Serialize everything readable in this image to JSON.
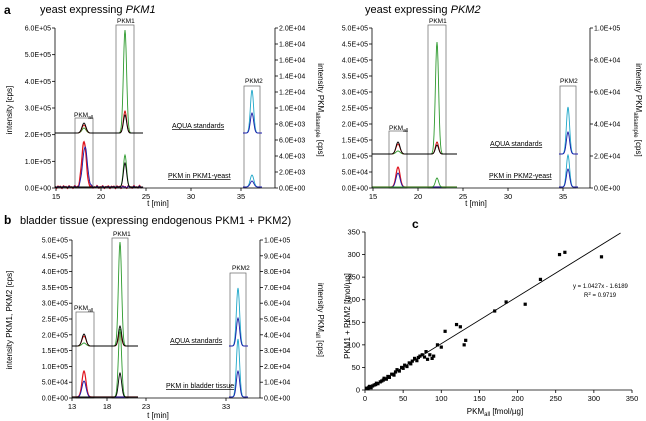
{
  "chart_data": [
    {
      "panel": "a",
      "type": "line",
      "title_prefix": "yeast expressing ",
      "title_gene": "PKM1",
      "xlabel": "t [min]",
      "xticks": [
        "15",
        "20",
        "25",
        "30",
        "35"
      ],
      "left_ylabel": "intensity [cps]",
      "left_ticks": [
        "0.0E+00",
        "1.0E+05",
        "2.0E+05",
        "3.0E+05",
        "4.0E+05",
        "5.0E+05",
        "6.0E+05"
      ],
      "right_ylabel_a": "intensity PKM",
      "right_ylabel_sub": "all",
      "right_ylabel_sub2": "sample",
      "right_ylabel_b": " [cps]",
      "right_ticks": [
        "0.0E+00",
        "2.0E+03",
        "4.0E+03",
        "6.0E+03",
        "8.0E+03",
        "1.0E+04",
        "1.2E+04",
        "1.4E+04",
        "1.6E+04",
        "1.8E+04",
        "2.0E+04"
      ],
      "box_labels": {
        "pkmall": "PKM",
        "pkmall_sub": "all",
        "pkm1": "PKM1",
        "pkm2": "PKM2"
      },
      "trace_labels": {
        "standards": "AQUA standards",
        "sample": "PKM in PKM1-yeast"
      }
    },
    {
      "panel": "a2",
      "type": "line",
      "title_prefix": "yeast expressing ",
      "title_gene": "PKM2",
      "xlabel": "t [min]",
      "xticks": [
        "15",
        "20",
        "25",
        "30",
        "35"
      ],
      "left_ticks": [
        "0.0E+00",
        "5.0E+04",
        "1.0E+05",
        "1.5E+05",
        "2.0E+05",
        "2.5E+05",
        "3.0E+05",
        "3.5E+05",
        "4.0E+05",
        "4.5E+05",
        "5.0E+05"
      ],
      "right_ticks": [
        "0.0E+00",
        "2.0E+04",
        "4.0E+04",
        "6.0E+04",
        "8.0E+04",
        "1.0E+05"
      ],
      "box_labels": {
        "pkmall": "PKM",
        "pkmall_sub": "all",
        "pkm1": "PKM1",
        "pkm2": "PKM2"
      },
      "trace_labels": {
        "standards": "AQUA standards",
        "sample": "PKM in PKM2-yeast"
      }
    },
    {
      "panel": "b",
      "type": "line",
      "title": "bladder tissue (expressing endogenous PKM1 + PKM2)",
      "xlabel": "t [min]",
      "xticks": [
        "13",
        "18",
        "23",
        "33"
      ],
      "left_ylabel": "intensity PKM1, PKM2 [cps]",
      "left_ticks": [
        "0.0E+00",
        "5.0E+04",
        "1.0E+05",
        "1.5E+05",
        "2.0E+05",
        "2.5E+05",
        "3.0E+05",
        "3.5E+05",
        "4.0E+05",
        "4.5E+05",
        "5.0E+05"
      ],
      "right_ticks": [
        "0.0E+00",
        "1.0E+04",
        "2.0E+04",
        "3.0E+04",
        "4.0E+04",
        "5.0E+04",
        "6.0E+04",
        "7.0E+04",
        "8.0E+04",
        "9.0E+04",
        "1.0E+05"
      ],
      "box_labels": {
        "pkmall": "PKM",
        "pkmall_sub": "all",
        "pkm1": "PKM1",
        "pkm2": "PKM2"
      },
      "trace_labels": {
        "standards": "AQUA standards",
        "sample": "PKM in bladder tissue"
      }
    },
    {
      "panel": "c",
      "type": "scatter",
      "xlabel": "PKM",
      "xlabel_sub": "all",
      "xlabel_unit": " [fmol/µg]",
      "ylabel": "PKM1 + PKM2 [fmol/µg]",
      "xlim": [
        0,
        350
      ],
      "ylim": [
        0,
        350
      ],
      "xticks": [
        "0",
        "50",
        "100",
        "150",
        "200",
        "250",
        "300",
        "350"
      ],
      "yticks": [
        "0",
        "50",
        "100",
        "150",
        "200",
        "250",
        "300",
        "350"
      ],
      "equation": "y = 1.0427x - 1.6189",
      "r2": "R",
      "r2_sup": "2",
      "r2_val": " = 0.9719",
      "fit": {
        "slope": 1.0427,
        "intercept": -1.6189
      },
      "points": [
        [
          2,
          4
        ],
        [
          4,
          3
        ],
        [
          5,
          6
        ],
        [
          6,
          8
        ],
        [
          8,
          5
        ],
        [
          10,
          9
        ],
        [
          12,
          11
        ],
        [
          14,
          12
        ],
        [
          15,
          15
        ],
        [
          17,
          14
        ],
        [
          20,
          18
        ],
        [
          22,
          20
        ],
        [
          24,
          22
        ],
        [
          25,
          26
        ],
        [
          28,
          24
        ],
        [
          30,
          30
        ],
        [
          32,
          28
        ],
        [
          35,
          35
        ],
        [
          38,
          33
        ],
        [
          40,
          40
        ],
        [
          42,
          45
        ],
        [
          45,
          42
        ],
        [
          48,
          50
        ],
        [
          50,
          48
        ],
        [
          52,
          55
        ],
        [
          55,
          52
        ],
        [
          58,
          60
        ],
        [
          60,
          58
        ],
        [
          62,
          64
        ],
        [
          65,
          70
        ],
        [
          68,
          65
        ],
        [
          70,
          72
        ],
        [
          72,
          75
        ],
        [
          75,
          78
        ],
        [
          78,
          73
        ],
        [
          80,
          85
        ],
        [
          82,
          68
        ],
        [
          85,
          78
        ],
        [
          88,
          70
        ],
        [
          90,
          75
        ],
        [
          95,
          100
        ],
        [
          100,
          95
        ],
        [
          105,
          130
        ],
        [
          120,
          145
        ],
        [
          125,
          140
        ],
        [
          130,
          100
        ],
        [
          132,
          110
        ],
        [
          170,
          175
        ],
        [
          185,
          195
        ],
        [
          210,
          190
        ],
        [
          230,
          245
        ],
        [
          255,
          300
        ],
        [
          262,
          305
        ],
        [
          310,
          295
        ]
      ]
    }
  ],
  "panel_letters": {
    "a": "a",
    "b": "b",
    "c": "c"
  }
}
